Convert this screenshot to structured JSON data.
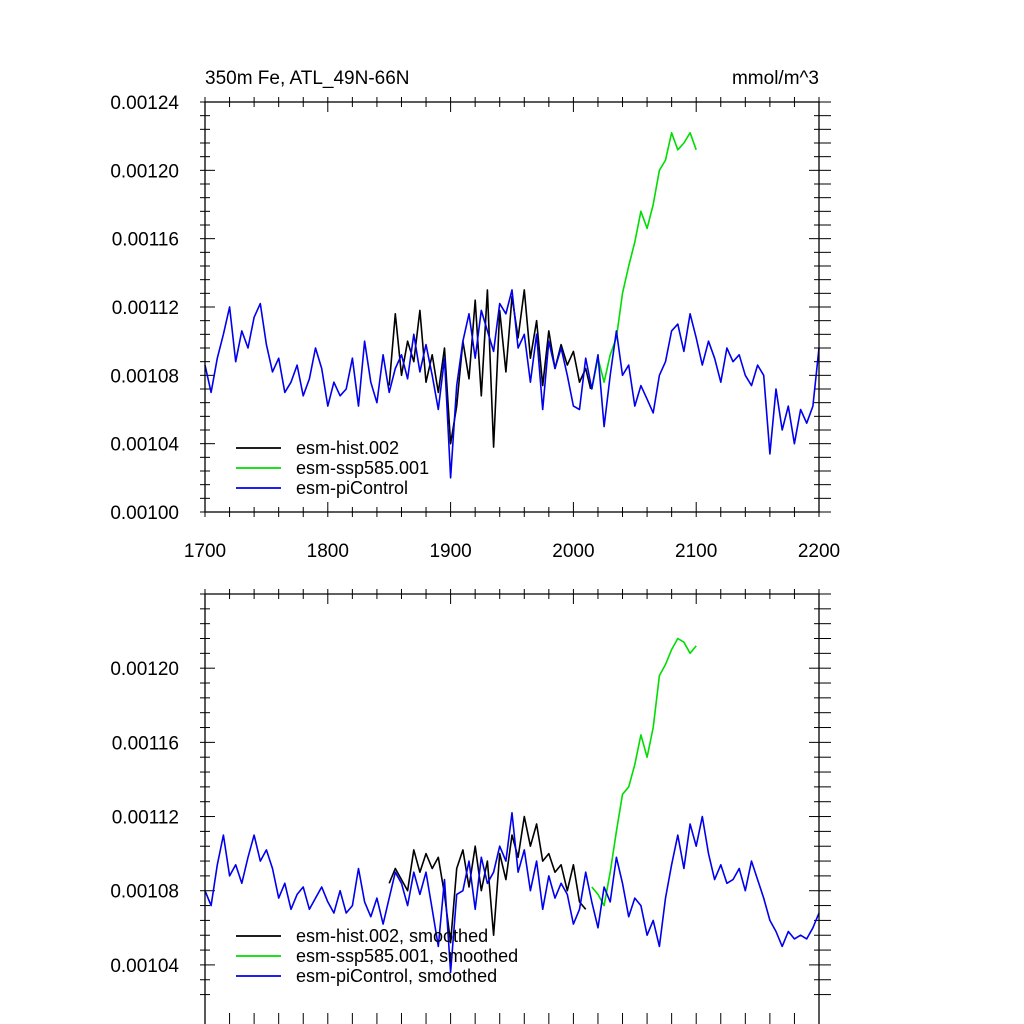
{
  "chart_data": [
    {
      "type": "line",
      "title": "350m Fe, ATL_49N-66N",
      "units": "mmol/m^3",
      "xlim": [
        1700,
        2200
      ],
      "ylim": [
        0.001,
        0.00124
      ],
      "x_ticks": [
        1700,
        1800,
        1900,
        2000,
        2100,
        2200
      ],
      "x_tick_labels": [
        "1700",
        "1800",
        "1900",
        "2000",
        "2100",
        "2200"
      ],
      "y_ticks": [
        0.001,
        0.00104,
        0.00108,
        0.00112,
        0.00116,
        0.0012,
        0.00124
      ],
      "y_tick_labels": [
        "0.00100",
        "0.00104",
        "0.00108",
        "0.00112",
        "0.00116",
        "0.00120",
        "0.00124"
      ],
      "legend_position": "bottom-left",
      "series": [
        {
          "name": "esm-hist.002",
          "color": "#000000",
          "x": [
            1850,
            1855,
            1860,
            1865,
            1870,
            1875,
            1880,
            1885,
            1890,
            1895,
            1900,
            1905,
            1910,
            1915,
            1920,
            1925,
            1930,
            1935,
            1940,
            1945,
            1950,
            1955,
            1960,
            1965,
            1970,
            1975,
            1980,
            1985,
            1990,
            1995,
            2000,
            2005,
            2010,
            2014
          ],
          "values": [
            0.001074,
            0.001116,
            0.00108,
            0.0011,
            0.001088,
            0.001118,
            0.001076,
            0.001092,
            0.00107,
            0.001096,
            0.00104,
            0.001062,
            0.0011,
            0.001078,
            0.001124,
            0.001068,
            0.00113,
            0.001038,
            0.001118,
            0.001082,
            0.001126,
            0.001102,
            0.00113,
            0.00109,
            0.001112,
            0.001074,
            0.001106,
            0.001084,
            0.001098,
            0.001086,
            0.001094,
            0.001076,
            0.001084,
            0.001072
          ]
        },
        {
          "name": "esm-ssp585.001",
          "color": "#00dd00",
          "x": [
            2015,
            2020,
            2025,
            2030,
            2035,
            2040,
            2045,
            2050,
            2055,
            2060,
            2065,
            2070,
            2075,
            2080,
            2085,
            2090,
            2095,
            2100
          ],
          "values": [
            0.001072,
            0.00109,
            0.001076,
            0.001092,
            0.001102,
            0.001128,
            0.001144,
            0.001158,
            0.001176,
            0.001166,
            0.00118,
            0.0012,
            0.001206,
            0.001222,
            0.001212,
            0.001216,
            0.001222,
            0.001212
          ]
        },
        {
          "name": "esm-piControl",
          "color": "#0000ee",
          "x": [
            1700,
            1705,
            1710,
            1715,
            1720,
            1725,
            1730,
            1735,
            1740,
            1745,
            1750,
            1755,
            1760,
            1765,
            1770,
            1775,
            1780,
            1785,
            1790,
            1795,
            1800,
            1805,
            1810,
            1815,
            1820,
            1825,
            1830,
            1835,
            1840,
            1845,
            1850,
            1855,
            1860,
            1865,
            1870,
            1875,
            1880,
            1885,
            1890,
            1895,
            1900,
            1905,
            1910,
            1915,
            1920,
            1925,
            1930,
            1935,
            1940,
            1945,
            1950,
            1955,
            1960,
            1965,
            1970,
            1975,
            1980,
            1985,
            1990,
            1995,
            2000,
            2005,
            2010,
            2015,
            2020,
            2025,
            2030,
            2035,
            2040,
            2045,
            2050,
            2055,
            2060,
            2065,
            2070,
            2075,
            2080,
            2085,
            2090,
            2095,
            2100,
            2105,
            2110,
            2115,
            2120,
            2125,
            2130,
            2135,
            2140,
            2145,
            2150,
            2155,
            2160,
            2165,
            2170,
            2175,
            2180,
            2185,
            2190,
            2195,
            2200
          ],
          "values": [
            0.001086,
            0.00107,
            0.00109,
            0.001104,
            0.00112,
            0.001088,
            0.001106,
            0.001096,
            0.001114,
            0.001122,
            0.001098,
            0.001082,
            0.00109,
            0.00107,
            0.001076,
            0.001086,
            0.001068,
            0.001078,
            0.001096,
            0.001084,
            0.001062,
            0.001076,
            0.001068,
            0.001072,
            0.00109,
            0.001062,
            0.0011,
            0.001076,
            0.001064,
            0.001092,
            0.00107,
            0.001084,
            0.001092,
            0.001078,
            0.001104,
            0.001082,
            0.001098,
            0.00108,
            0.00106,
            0.00109,
            0.00102,
            0.001074,
            0.0011,
            0.001116,
            0.00109,
            0.001118,
            0.001106,
            0.001094,
            0.001122,
            0.001116,
            0.00113,
            0.001096,
            0.001104,
            0.001076,
            0.001104,
            0.00106,
            0.0011,
            0.001084,
            0.001096,
            0.00108,
            0.001062,
            0.00106,
            0.00109,
            0.001072,
            0.001092,
            0.00105,
            0.00108,
            0.001106,
            0.00108,
            0.001086,
            0.001062,
            0.001074,
            0.001066,
            0.001058,
            0.00108,
            0.001088,
            0.001106,
            0.00111,
            0.001094,
            0.001116,
            0.001102,
            0.001086,
            0.0011,
            0.00109,
            0.001076,
            0.001096,
            0.001088,
            0.001092,
            0.00108,
            0.001074,
            0.001086,
            0.00108,
            0.001034,
            0.001072,
            0.001048,
            0.001062,
            0.00104,
            0.00106,
            0.001052,
            0.001062,
            0.001096
          ]
        }
      ]
    },
    {
      "type": "line",
      "title": "",
      "xlim": [
        1700,
        2200
      ],
      "ylim": [
        0.00102,
        0.00124
      ],
      "y_ticks": [
        0.00104,
        0.00108,
        0.00112,
        0.00116,
        0.0012
      ],
      "y_tick_labels": [
        "0.00104",
        "0.00108",
        "0.00112",
        "0.00116",
        "0.00120"
      ],
      "legend_position": "bottom-left",
      "series": [
        {
          "name": "esm-hist.002, smoothed",
          "color": "#000000",
          "x": [
            1850,
            1855,
            1860,
            1865,
            1870,
            1875,
            1880,
            1885,
            1890,
            1895,
            1900,
            1905,
            1910,
            1915,
            1920,
            1925,
            1930,
            1935,
            1940,
            1945,
            1950,
            1955,
            1960,
            1965,
            1970,
            1975,
            1980,
            1985,
            1990,
            1995,
            2000,
            2005,
            2010
          ],
          "values": [
            0.001084,
            0.001092,
            0.001086,
            0.00108,
            0.001102,
            0.00109,
            0.0011,
            0.001092,
            0.001098,
            0.001078,
            0.001052,
            0.001092,
            0.001102,
            0.001082,
            0.001104,
            0.00108,
            0.001096,
            0.001056,
            0.0011,
            0.001086,
            0.00111,
            0.001098,
            0.00112,
            0.001104,
            0.001116,
            0.001096,
            0.0011,
            0.00109,
            0.001094,
            0.00108,
            0.001094,
            0.001074,
            0.00107
          ]
        },
        {
          "name": "esm-ssp585.001, smoothed",
          "color": "#00dd00",
          "x": [
            2015,
            2020,
            2025,
            2030,
            2035,
            2040,
            2045,
            2050,
            2055,
            2060,
            2065,
            2070,
            2075,
            2080,
            2085,
            2090,
            2095,
            2100
          ],
          "values": [
            0.001082,
            0.001078,
            0.001072,
            0.00109,
            0.001112,
            0.001132,
            0.001136,
            0.001148,
            0.001164,
            0.001152,
            0.001168,
            0.001196,
            0.001202,
            0.00121,
            0.001216,
            0.001214,
            0.001208,
            0.001212
          ]
        },
        {
          "name": "esm-piControl, smoothed",
          "color": "#0000ee",
          "x": [
            1700,
            1705,
            1710,
            1715,
            1720,
            1725,
            1730,
            1735,
            1740,
            1745,
            1750,
            1755,
            1760,
            1765,
            1770,
            1775,
            1780,
            1785,
            1790,
            1795,
            1800,
            1805,
            1810,
            1815,
            1820,
            1825,
            1830,
            1835,
            1840,
            1845,
            1850,
            1855,
            1860,
            1865,
            1870,
            1875,
            1880,
            1885,
            1890,
            1895,
            1900,
            1905,
            1910,
            1915,
            1920,
            1925,
            1930,
            1935,
            1940,
            1945,
            1950,
            1955,
            1960,
            1965,
            1970,
            1975,
            1980,
            1985,
            1990,
            1995,
            2000,
            2005,
            2010,
            2015,
            2020,
            2025,
            2030,
            2035,
            2040,
            2045,
            2050,
            2055,
            2060,
            2065,
            2070,
            2075,
            2080,
            2085,
            2090,
            2095,
            2100,
            2105,
            2110,
            2115,
            2120,
            2125,
            2130,
            2135,
            2140,
            2145,
            2150,
            2155,
            2160,
            2165,
            2170,
            2175,
            2180,
            2185,
            2190,
            2195,
            2200
          ],
          "values": [
            0.00108,
            0.001072,
            0.001094,
            0.00111,
            0.001088,
            0.001094,
            0.001084,
            0.001098,
            0.00111,
            0.001096,
            0.001102,
            0.001092,
            0.001076,
            0.001084,
            0.00107,
            0.001078,
            0.001082,
            0.00107,
            0.001076,
            0.001082,
            0.001074,
            0.001068,
            0.00108,
            0.001068,
            0.001072,
            0.001092,
            0.001074,
            0.001066,
            0.001076,
            0.001062,
            0.001076,
            0.00109,
            0.001084,
            0.001072,
            0.00109,
            0.001078,
            0.00109,
            0.00107,
            0.00105,
            0.001086,
            0.001036,
            0.001078,
            0.00108,
            0.001096,
            0.00107,
            0.001098,
            0.001084,
            0.00109,
            0.001104,
            0.001096,
            0.001122,
            0.00109,
            0.001102,
            0.00108,
            0.001096,
            0.00107,
            0.001088,
            0.001076,
            0.001084,
            0.001078,
            0.001062,
            0.00107,
            0.00109,
            0.001074,
            0.00106,
            0.001082,
            0.001074,
            0.001098,
            0.001084,
            0.001066,
            0.001076,
            0.001072,
            0.001056,
            0.001064,
            0.00105,
            0.001076,
            0.001094,
            0.00111,
            0.001092,
            0.001116,
            0.001104,
            0.00112,
            0.0011,
            0.001086,
            0.001094,
            0.001084,
            0.001086,
            0.001092,
            0.00108,
            0.001096,
            0.001086,
            0.001076,
            0.001064,
            0.001058,
            0.00105,
            0.001058,
            0.001054,
            0.001056,
            0.001054,
            0.00106,
            0.001068
          ]
        }
      ]
    }
  ]
}
